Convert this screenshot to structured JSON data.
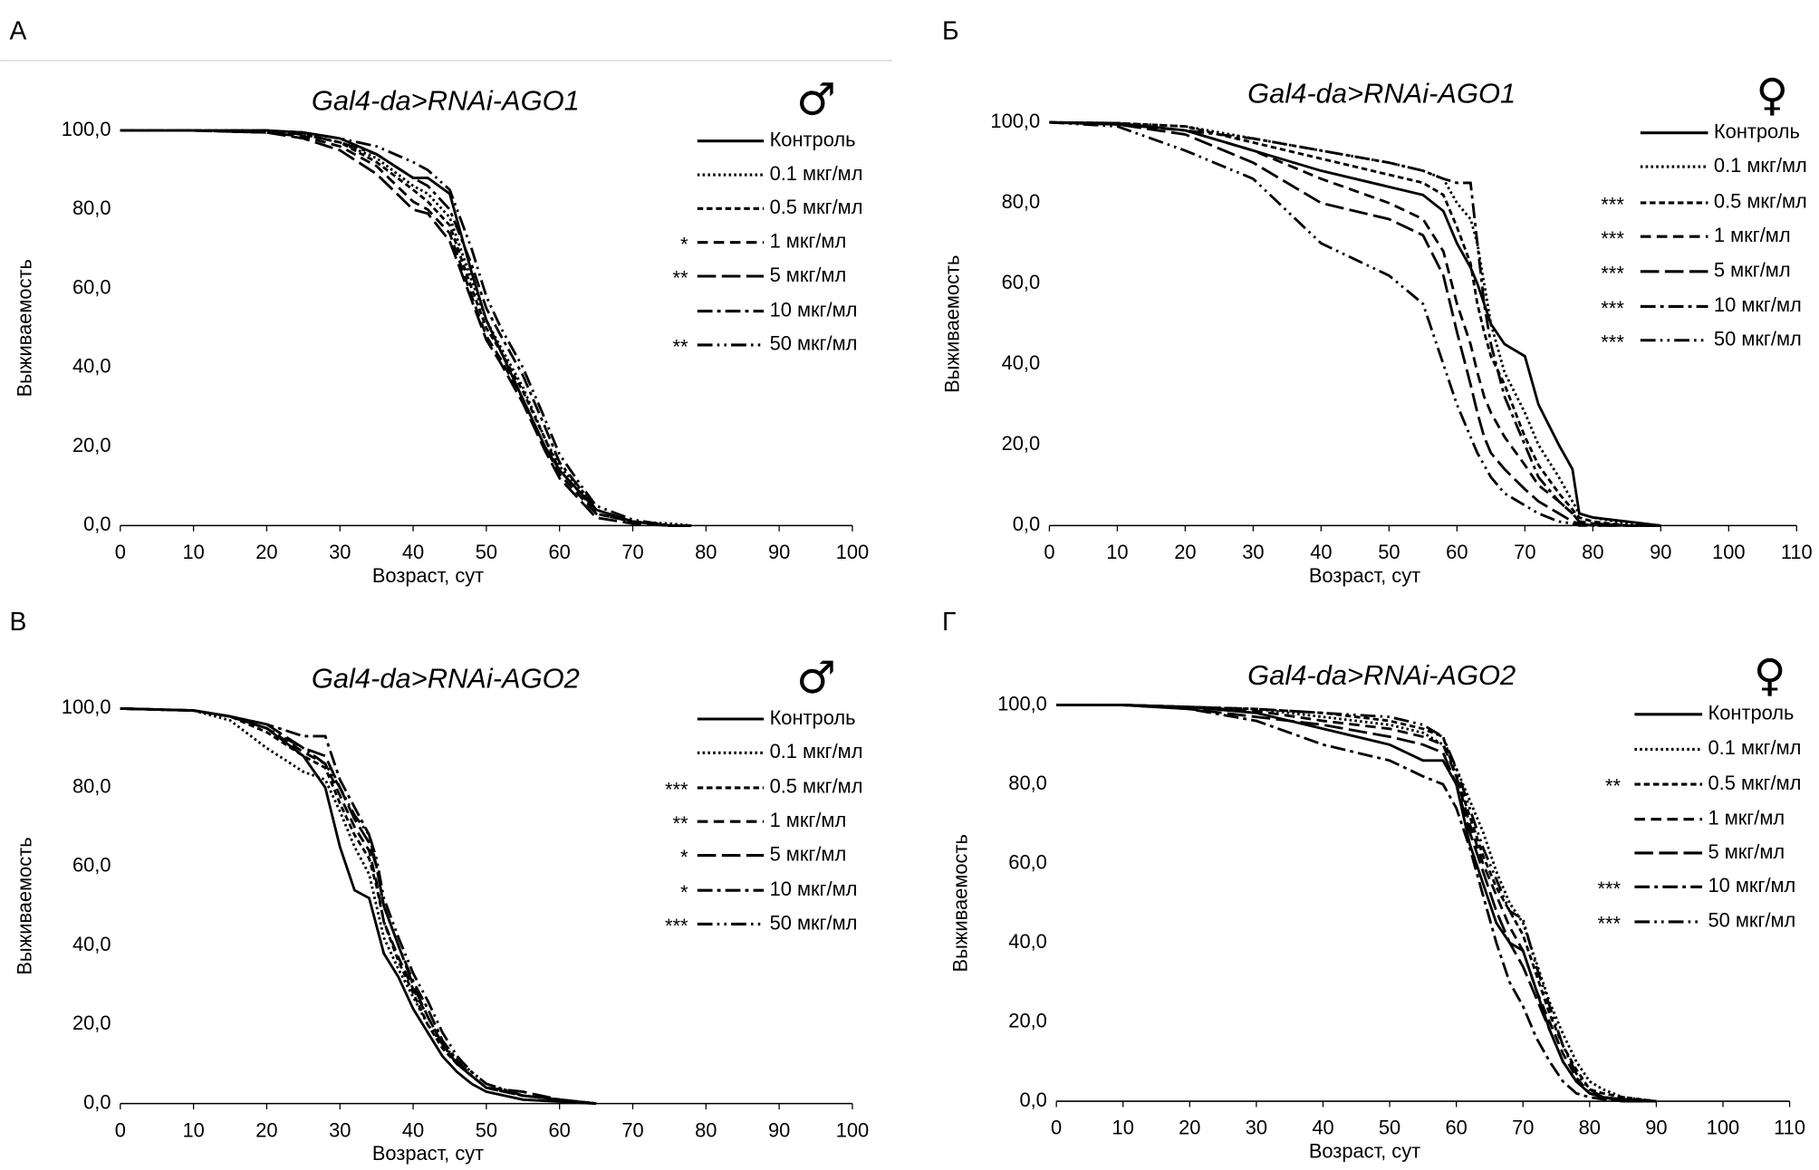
{
  "chart_data": [
    {
      "type": "line",
      "panel": "А",
      "title": "Gal4-da>RNAi-AGO1",
      "symbol": "♂",
      "xlabel": "Возраст, сут",
      "ylabel": "Выживаемость",
      "xlim": [
        0,
        100
      ],
      "ylim": [
        0,
        100
      ],
      "xticks": [
        0,
        10,
        20,
        30,
        40,
        50,
        60,
        70,
        80,
        90,
        100
      ],
      "yticks": [
        {
          "value": 0,
          "label": "0,0"
        },
        {
          "value": 20,
          "label": "20,0"
        },
        {
          "value": 40,
          "label": "40,0"
        },
        {
          "value": 60,
          "label": "60,0"
        },
        {
          "value": 80,
          "label": "80,0"
        },
        {
          "value": 100,
          "label": "100,0"
        }
      ],
      "x": [
        0,
        10,
        20,
        25,
        30,
        35,
        40,
        42,
        45,
        48,
        50,
        52,
        55,
        58,
        60,
        63,
        65,
        70,
        75,
        78
      ],
      "series": [
        {
          "name": "Контроль",
          "color": "#000000",
          "dash": "solid",
          "values": [
            100,
            100,
            100,
            99.5,
            98,
            94,
            88,
            88,
            84,
            64,
            52,
            44,
            32,
            20,
            14,
            8,
            4,
            1,
            0,
            0
          ]
        },
        {
          "name": "0.1 мкг/мл",
          "color": "#000000",
          "dash": "dotted",
          "values": [
            100,
            100,
            100,
            99,
            97,
            93,
            86,
            84,
            78,
            62,
            52,
            45,
            35,
            22,
            15,
            9,
            4,
            1,
            0.5,
            0
          ]
        },
        {
          "name": "0.5 мкг/мл",
          "color": "#000000",
          "dash": "short-dash",
          "values": [
            100,
            100,
            99.5,
            99,
            97,
            92,
            85,
            82,
            76,
            60,
            50,
            44,
            34,
            22,
            14,
            8,
            3,
            1,
            0,
            0
          ]
        },
        {
          "name": "1 мкг/мл",
          "color": "#000000",
          "dash": "dash",
          "significance": "*",
          "values": [
            100,
            100,
            99.5,
            98.5,
            96,
            91,
            82,
            80,
            74,
            58,
            48,
            42,
            32,
            20,
            13,
            7,
            3,
            1,
            0,
            0
          ]
        },
        {
          "name": "5 мкг/мл",
          "color": "#000000",
          "dash": "long-dash",
          "significance": "**",
          "values": [
            100,
            100,
            99.5,
            98,
            95,
            89,
            80,
            79,
            72,
            57,
            47,
            41,
            31,
            19,
            12,
            6,
            2,
            0.5,
            0,
            0
          ]
        },
        {
          "name": "10 мкг/мл",
          "color": "#000000",
          "dash": "dash-dot",
          "values": [
            100,
            100,
            100,
            99,
            97,
            94,
            88,
            86,
            80,
            66,
            55,
            48,
            38,
            25,
            16,
            9,
            4,
            1,
            0,
            0
          ]
        },
        {
          "name": "50 мкг/мл",
          "color": "#000000",
          "dash": "dash-dot-dot",
          "significance": "**",
          "values": [
            100,
            100,
            100,
            99.5,
            98,
            96,
            92,
            90,
            85,
            70,
            58,
            50,
            40,
            27,
            18,
            10,
            5,
            1.5,
            0,
            0
          ]
        }
      ]
    },
    {
      "type": "line",
      "panel": "Б",
      "title": "Gal4-da>RNAi-AGO1",
      "symbol": "♀",
      "xlabel": "Возраст, сут",
      "ylabel": "Выживаемость",
      "xlim": [
        0,
        110
      ],
      "ylim": [
        0,
        100
      ],
      "xticks": [
        0,
        10,
        20,
        30,
        40,
        50,
        60,
        70,
        80,
        90,
        100,
        110
      ],
      "yticks": [
        {
          "value": 0,
          "label": "0,0"
        },
        {
          "value": 20,
          "label": "20,0"
        },
        {
          "value": 40,
          "label": "40,0"
        },
        {
          "value": 60,
          "label": "60,0"
        },
        {
          "value": 80,
          "label": "80,0"
        },
        {
          "value": 100,
          "label": "100,0"
        }
      ],
      "x": [
        0,
        10,
        20,
        30,
        40,
        50,
        55,
        58,
        60,
        62,
        63,
        64,
        65,
        67,
        70,
        72,
        75,
        77,
        78,
        80,
        85,
        90
      ],
      "series": [
        {
          "name": "Контроль",
          "color": "#000000",
          "dash": "solid",
          "values": [
            100,
            99.8,
            98,
            93,
            88,
            84,
            82,
            78,
            70,
            64,
            60,
            55,
            50,
            45,
            42,
            30,
            20,
            14,
            3,
            2,
            1,
            0
          ]
        },
        {
          "name": "0.1 мкг/мл",
          "color": "#000000",
          "dash": "dotted",
          "values": [
            100,
            99.8,
            99,
            96,
            93,
            90,
            88,
            86,
            80,
            76,
            70,
            60,
            50,
            38,
            28,
            20,
            12,
            6,
            3,
            2,
            0.5,
            0
          ]
        },
        {
          "name": "0.5 мкг/мл",
          "color": "#000000",
          "dash": "short-dash",
          "significance": "***",
          "values": [
            100,
            99.8,
            99,
            95,
            91,
            87,
            85,
            82,
            74,
            65,
            55,
            48,
            42,
            35,
            22,
            15,
            8,
            4,
            2,
            1,
            0,
            0
          ]
        },
        {
          "name": "1 мкг/мл",
          "color": "#000000",
          "dash": "dash",
          "significance": "***",
          "values": [
            100,
            99.5,
            98,
            93,
            86,
            80,
            76,
            68,
            55,
            45,
            38,
            32,
            28,
            22,
            15,
            10,
            6,
            3,
            1,
            0.5,
            0,
            0
          ]
        },
        {
          "name": "5 мкг/мл",
          "color": "#000000",
          "dash": "long-dash",
          "significance": "***",
          "values": [
            100,
            99.5,
            97,
            90,
            80,
            76,
            72,
            62,
            48,
            35,
            28,
            22,
            18,
            14,
            9,
            6,
            3,
            1,
            0.5,
            0,
            0,
            0
          ]
        },
        {
          "name": "10 мкг/мл",
          "color": "#000000",
          "dash": "dash-dot",
          "significance": "***",
          "values": [
            100,
            99.5,
            98,
            96,
            93,
            90,
            88,
            86,
            85,
            85,
            70,
            55,
            45,
            32,
            20,
            12,
            6,
            3,
            1,
            0.5,
            0,
            0
          ]
        },
        {
          "name": "50 мкг/мл",
          "color": "#000000",
          "dash": "dash-dot-dot",
          "significance": "***",
          "values": [
            100,
            99,
            93,
            86,
            70,
            62,
            55,
            40,
            30,
            22,
            18,
            15,
            12,
            8,
            5,
            3,
            1,
            0.5,
            0,
            0,
            0,
            0
          ]
        }
      ]
    },
    {
      "type": "line",
      "panel": "В",
      "title": "Gal4-da>RNAi-AGO2",
      "symbol": "♂",
      "xlabel": "Возраст, сут",
      "ylabel": "Выживаемость",
      "xlim": [
        0,
        100
      ],
      "ylim": [
        0,
        100
      ],
      "xticks": [
        0,
        10,
        20,
        30,
        40,
        50,
        60,
        70,
        80,
        90,
        100
      ],
      "yticks": [
        {
          "value": 0,
          "label": "0,0"
        },
        {
          "value": 20,
          "label": "20,0"
        },
        {
          "value": 40,
          "label": "40,0"
        },
        {
          "value": 60,
          "label": "60,0"
        },
        {
          "value": 80,
          "label": "80,0"
        },
        {
          "value": 100,
          "label": "100,0"
        }
      ],
      "x": [
        0,
        10,
        15,
        20,
        25,
        28,
        30,
        32,
        34,
        35,
        36,
        38,
        40,
        42,
        44,
        46,
        48,
        50,
        55,
        60,
        65
      ],
      "series": [
        {
          "name": "Контроль",
          "color": "#000000",
          "dash": "solid",
          "values": [
            100,
            99.5,
            98,
            95,
            88,
            80,
            65,
            54,
            52,
            45,
            38,
            32,
            24,
            18,
            12,
            8,
            5,
            3,
            1,
            0.5,
            0
          ]
        },
        {
          "name": "0.1 мкг/мл",
          "color": "#000000",
          "dash": "dotted",
          "values": [
            100,
            99.5,
            97,
            90,
            84,
            82,
            74,
            65,
            58,
            50,
            42,
            34,
            27,
            20,
            15,
            11,
            8,
            5,
            2,
            1,
            0
          ]
        },
        {
          "name": "0.5 мкг/мл",
          "color": "#000000",
          "dash": "short-dash",
          "significance": "***",
          "values": [
            100,
            99.5,
            98,
            94,
            88,
            85,
            76,
            68,
            62,
            55,
            46,
            36,
            28,
            20,
            14,
            10,
            7,
            4,
            2,
            1,
            0
          ]
        },
        {
          "name": "1 мкг/мл",
          "color": "#000000",
          "dash": "dash",
          "significance": "**",
          "values": [
            100,
            99.5,
            98,
            95,
            89,
            86,
            78,
            70,
            64,
            56,
            46,
            37,
            29,
            22,
            15,
            10,
            7,
            4,
            2,
            1,
            0
          ]
        },
        {
          "name": "5 мкг/мл",
          "color": "#000000",
          "dash": "long-dash",
          "significance": "*",
          "values": [
            100,
            99.5,
            98,
            96,
            90,
            88,
            80,
            72,
            66,
            60,
            50,
            40,
            30,
            22,
            15,
            10,
            7,
            4,
            3,
            1,
            0
          ]
        },
        {
          "name": "10 мкг/мл",
          "color": "#000000",
          "dash": "dash-dot",
          "significance": "*",
          "values": [
            100,
            99.5,
            98,
            96,
            93,
            93,
            82,
            75,
            68,
            60,
            50,
            40,
            31,
            24,
            16,
            11,
            7,
            4,
            2,
            1,
            0
          ]
        },
        {
          "name": "50 мкг/мл",
          "color": "#000000",
          "dash": "dash-dot-dot",
          "significance": "***",
          "values": [
            100,
            99.5,
            98,
            95,
            90,
            86,
            80,
            73,
            68,
            62,
            52,
            42,
            33,
            26,
            18,
            12,
            8,
            5,
            2,
            1,
            0
          ]
        }
      ]
    },
    {
      "type": "line",
      "panel": "Г",
      "title": "Gal4-da>RNAi-AGO2",
      "symbol": "♀",
      "xlabel": "Возраст, сут",
      "ylabel": "Выживаемость",
      "xlim": [
        0,
        110
      ],
      "ylim": [
        0,
        100
      ],
      "xticks": [
        0,
        10,
        20,
        30,
        40,
        50,
        60,
        70,
        80,
        90,
        100,
        110
      ],
      "yticks": [
        {
          "value": 0,
          "label": "0,0"
        },
        {
          "value": 20,
          "label": "20,0"
        },
        {
          "value": 40,
          "label": "40,0"
        },
        {
          "value": 60,
          "label": "60,0"
        },
        {
          "value": 80,
          "label": "80,0"
        },
        {
          "value": 100,
          "label": "100,0"
        }
      ],
      "x": [
        0,
        10,
        20,
        30,
        40,
        50,
        55,
        58,
        60,
        62,
        64,
        66,
        68,
        70,
        72,
        74,
        76,
        78,
        80,
        82,
        85,
        90
      ],
      "series": [
        {
          "name": "Контроль",
          "color": "#000000",
          "dash": "solid",
          "values": [
            100,
            100,
            99.5,
            98,
            94,
            90,
            86,
            86,
            80,
            65,
            55,
            45,
            40,
            38,
            28,
            18,
            10,
            5,
            2,
            1,
            0.5,
            0
          ]
        },
        {
          "name": "0.1 мкг/мл",
          "color": "#000000",
          "dash": "dotted",
          "values": [
            100,
            100,
            99.5,
            99,
            97,
            95,
            93,
            90,
            84,
            76,
            68,
            58,
            50,
            45,
            35,
            25,
            17,
            10,
            5,
            3,
            1,
            0
          ]
        },
        {
          "name": "0.5 мкг/мл",
          "color": "#000000",
          "dash": "short-dash",
          "significance": "**",
          "values": [
            100,
            100,
            99.5,
            99,
            98,
            96,
            94,
            92,
            82,
            72,
            62,
            54,
            48,
            42,
            32,
            22,
            14,
            8,
            3,
            2,
            1,
            0
          ]
        },
        {
          "name": "1 мкг/мл",
          "color": "#000000",
          "dash": "dash",
          "values": [
            100,
            100,
            99.5,
            98.5,
            96,
            94,
            92,
            90,
            82,
            70,
            60,
            52,
            44,
            38,
            28,
            20,
            12,
            6,
            2,
            1,
            0.5,
            0
          ]
        },
        {
          "name": "5 мкг/мл",
          "color": "#000000",
          "dash": "long-dash",
          "values": [
            100,
            100,
            99,
            97,
            95,
            92,
            90,
            88,
            80,
            68,
            58,
            48,
            40,
            34,
            26,
            18,
            10,
            5,
            2,
            1,
            0,
            0
          ]
        },
        {
          "name": "10 мкг/мл",
          "color": "#000000",
          "dash": "dash-dot",
          "significance": "***",
          "values": [
            100,
            100,
            99,
            96,
            90,
            86,
            82,
            80,
            74,
            64,
            52,
            40,
            30,
            24,
            16,
            10,
            5,
            2,
            1,
            0.5,
            0,
            0
          ]
        },
        {
          "name": "50 мкг/мл",
          "color": "#000000",
          "dash": "dash-dot-dot",
          "significance": "***",
          "values": [
            100,
            100,
            99.5,
            99,
            98,
            97,
            95,
            92,
            84,
            74,
            64,
            56,
            48,
            46,
            34,
            24,
            14,
            7,
            3,
            1,
            0.5,
            0
          ]
        }
      ]
    }
  ]
}
